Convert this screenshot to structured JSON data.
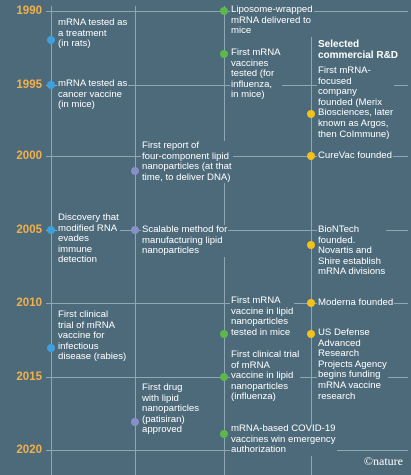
{
  "heading": "Selected\ncommercial R&D",
  "logo": "©nature",
  "years": [
    "1990",
    "1995",
    "2000",
    "2005",
    "2010",
    "2015",
    "2020"
  ],
  "events": {
    "rats_treatment": "mRNA tested as\na treatment\n(in rats)",
    "cancer_vaccine": "mRNA tested as\ncancer vaccine\n(in mice)",
    "modified_rna": "Discovery that\nmodified RNA\nevades\nimmune\ndetection",
    "rabies_trial": "First clinical\ntrial of mRNA\nvaccine for\ninfectious\ndisease (rabies)",
    "four_component": "First report of\nfour-component lipid\nnanoparticles (at that\ntime, to deliver DNA)",
    "scalable": "Scalable method for\nmanufacturing lipid\nnanoparticles",
    "patisiran": "First drug\nwith lipid\nnanoparticles\n(patisiran)\napproved",
    "liposome": "Liposome-wrapped\nmRNA delivered to\nmice",
    "influenza_vaccine": "First mRNA\nvaccines\ntested (for\ninfluenza,\nin mice)",
    "lnp_mice": "First mRNA\nvaccine in lipid\nnanoparticles\ntested in mice",
    "lnp_trial": "First clinical trial\nof mRNA\nvaccine in lipid\nnanoparticles\n(influenza)",
    "covid": "mRNA-based COVID-19\nvaccines win emergency\nauthorization",
    "merix": "First mRNA-\nfocused\ncompany\nfounded (Merix\nBiosciences, later\nknown as Argos,\nthen CoImmune)",
    "curevac": "CureVac founded",
    "biontech": "BioNTech\nfounded.\nNovartis and\nShire establish\nmRNA divisions",
    "moderna": "Moderna founded",
    "darpa": "US Defense\nAdvanced\nResearch\nProjects Agency\nbegins funding\nmRNA vaccine\nresearch"
  }
}
